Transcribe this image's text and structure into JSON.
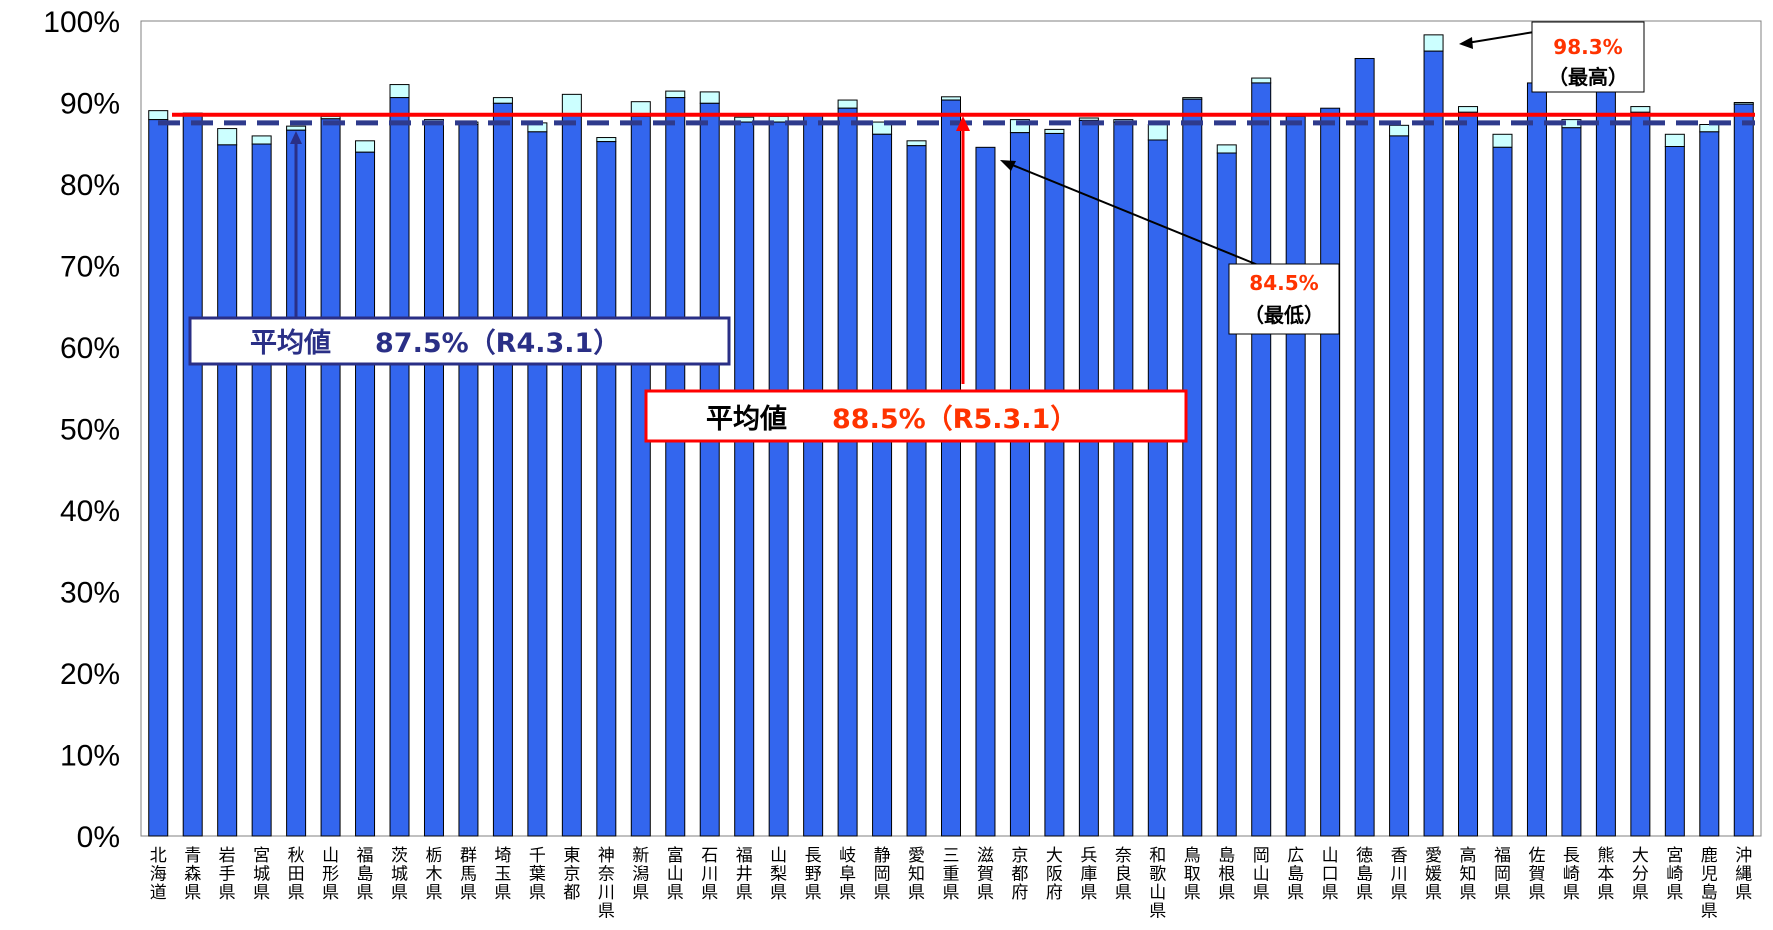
{
  "chart_data": {
    "type": "bar",
    "categories": [
      "北海道",
      "青森県",
      "岩手県",
      "宮城県",
      "秋田県",
      "山形県",
      "福島県",
      "茨城県",
      "栃木県",
      "群馬県",
      "埼玉県",
      "千葉県",
      "東京都",
      "神奈川県",
      "新潟県",
      "富山県",
      "石川県",
      "福井県",
      "山梨県",
      "長野県",
      "岐阜県",
      "静岡県",
      "愛知県",
      "三重県",
      "滋賀県",
      "京都府",
      "大阪府",
      "兵庫県",
      "奈良県",
      "和歌山県",
      "鳥取県",
      "島根県",
      "岡山県",
      "広島県",
      "山口県",
      "徳島県",
      "香川県",
      "愛媛県",
      "高知県",
      "福岡県",
      "佐賀県",
      "長崎県",
      "熊本県",
      "大分県",
      "宮崎県",
      "鹿児島県",
      "沖縄県"
    ],
    "series": [
      {
        "values": [
          87.9,
          88.6,
          84.8,
          84.9,
          86.6,
          88.0,
          83.9,
          90.6,
          87.7,
          87.3,
          89.9,
          86.4,
          88.4,
          85.2,
          88.3,
          90.6,
          89.9,
          87.6,
          87.6,
          88.5,
          89.3,
          86.1,
          84.7,
          90.3,
          84.5,
          86.3,
          86.2,
          87.8,
          87.6,
          85.4,
          90.4,
          83.8,
          92.4,
          88.3,
          89.3,
          95.4,
          85.9,
          96.3,
          88.8,
          84.5,
          92.4,
          86.9,
          92.1,
          88.8,
          84.6,
          86.4,
          89.8
        ]
      },
      {
        "values": [
          89.0,
          88.7,
          86.8,
          85.9,
          87.1,
          88.3,
          85.3,
          92.2,
          87.9,
          87.6,
          90.6,
          87.5,
          91.0,
          85.7,
          90.1,
          91.4,
          91.3,
          88.2,
          88.3,
          88.5,
          90.3,
          87.6,
          85.3,
          90.7,
          84.5,
          87.9,
          86.7,
          88.1,
          87.9,
          87.3,
          90.6,
          84.8,
          93.0,
          88.3,
          89.3,
          95.4,
          87.2,
          98.3,
          89.5,
          86.1,
          92.4,
          87.9,
          92.1,
          89.5,
          86.1,
          87.3,
          90.0
        ]
      }
    ],
    "ylim": [
      0,
      100
    ],
    "yticks": [
      "0%",
      "10%",
      "20%",
      "30%",
      "40%",
      "50%",
      "60%",
      "70%",
      "80%",
      "90%",
      "100%"
    ],
    "averages": [
      {
        "value": 87.5,
        "style": "dashed",
        "color": "#2e3a8c"
      },
      {
        "value": 88.5,
        "style": "solid",
        "color": "#ff0000"
      }
    ],
    "colors": {
      "bar_primary": "#3366ee",
      "bar_secondary": "#ccffff",
      "avg_current": "#ff0000",
      "avg_previous": "#2e3a8c",
      "annotation_red": "#ff3300"
    },
    "annotations": {
      "max_value": "98.3%",
      "max_label": "（最高）",
      "min_value": "84.5%",
      "min_label": "（最低）",
      "avg_prev_label": "平均値",
      "avg_prev_value": "87.5%（R4.3.1）",
      "avg_curr_label": "平均値",
      "avg_curr_value": "88.5%（R5.3.1）"
    },
    "grid": false,
    "legend": "none"
  }
}
